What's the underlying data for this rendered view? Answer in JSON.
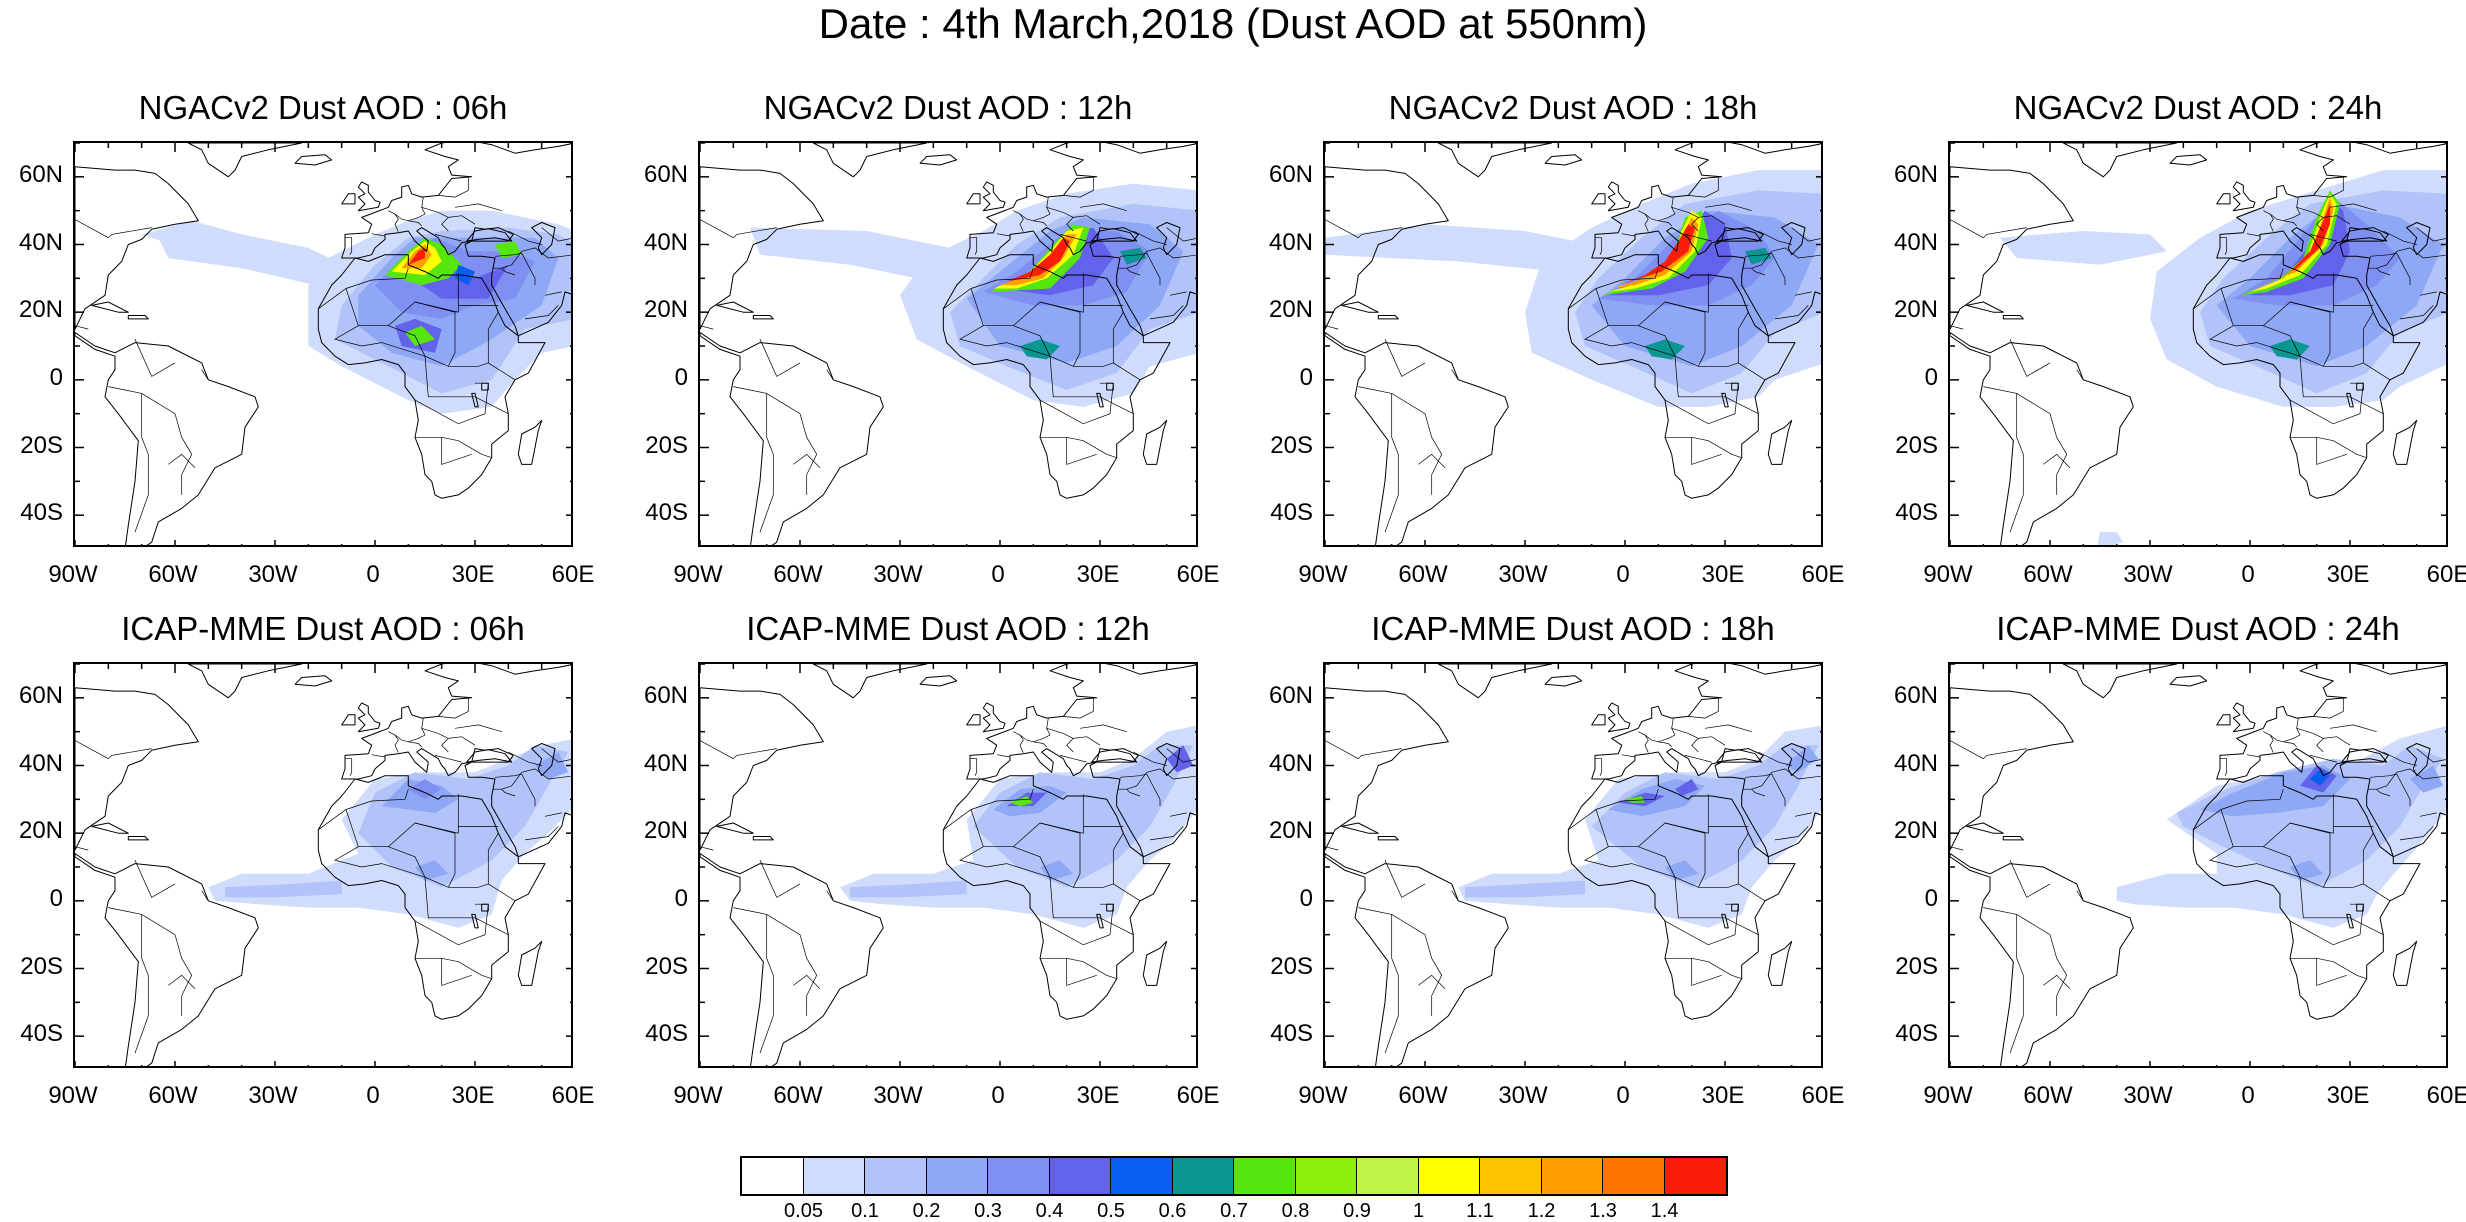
{
  "title": "Date : 4th March,2018 (Dust AOD at 550nm)",
  "panels": [
    {
      "title": "NGACv2 Dust AOD : 06h",
      "model": "NGACv2",
      "hour": "06h"
    },
    {
      "title": "NGACv2 Dust AOD : 12h",
      "model": "NGACv2",
      "hour": "12h"
    },
    {
      "title": "NGACv2 Dust AOD : 18h",
      "model": "NGACv2",
      "hour": "18h"
    },
    {
      "title": "NGACv2 Dust AOD : 24h",
      "model": "NGACv2",
      "hour": "24h"
    },
    {
      "title": "ICAP-MME Dust AOD : 06h",
      "model": "ICAP-MME",
      "hour": "06h"
    },
    {
      "title": "ICAP-MME Dust AOD : 12h",
      "model": "ICAP-MME",
      "hour": "12h"
    },
    {
      "title": "ICAP-MME Dust AOD : 18h",
      "model": "ICAP-MME",
      "hour": "18h"
    },
    {
      "title": "ICAP-MME Dust AOD : 24h",
      "model": "ICAP-MME",
      "hour": "24h"
    }
  ],
  "map_extent": {
    "lon": [
      -90,
      60
    ],
    "lat": [
      -50,
      70
    ]
  },
  "lat_ticks": [
    {
      "value": 60,
      "label": "60N"
    },
    {
      "value": 40,
      "label": "40N"
    },
    {
      "value": 20,
      "label": "20N"
    },
    {
      "value": 0,
      "label": "0"
    },
    {
      "value": -20,
      "label": "20S"
    },
    {
      "value": -40,
      "label": "40S"
    }
  ],
  "lon_ticks": [
    {
      "value": -90,
      "label": "90W"
    },
    {
      "value": -60,
      "label": "60W"
    },
    {
      "value": -30,
      "label": "30W"
    },
    {
      "value": 0,
      "label": "0"
    },
    {
      "value": 30,
      "label": "30E"
    },
    {
      "value": 60,
      "label": "60E"
    }
  ],
  "colorbar": {
    "labels": [
      "0.05",
      "0.1",
      "0.2",
      "0.3",
      "0.4",
      "0.5",
      "0.6",
      "0.7",
      "0.8",
      "0.9",
      "1",
      "1.1",
      "1.2",
      "1.3",
      "1.4"
    ],
    "colors": [
      "#ffffff",
      "#d0dcfb",
      "#b2c3f9",
      "#8fa8f5",
      "#7f8ff2",
      "#6262ea",
      "#0a5ef0",
      "#0c9691",
      "#57e50e",
      "#8cf00a",
      "#bff545",
      "#ffff00",
      "#ffc400",
      "#ff9e00",
      "#ff7300",
      "#fa1e0a"
    ]
  }
}
